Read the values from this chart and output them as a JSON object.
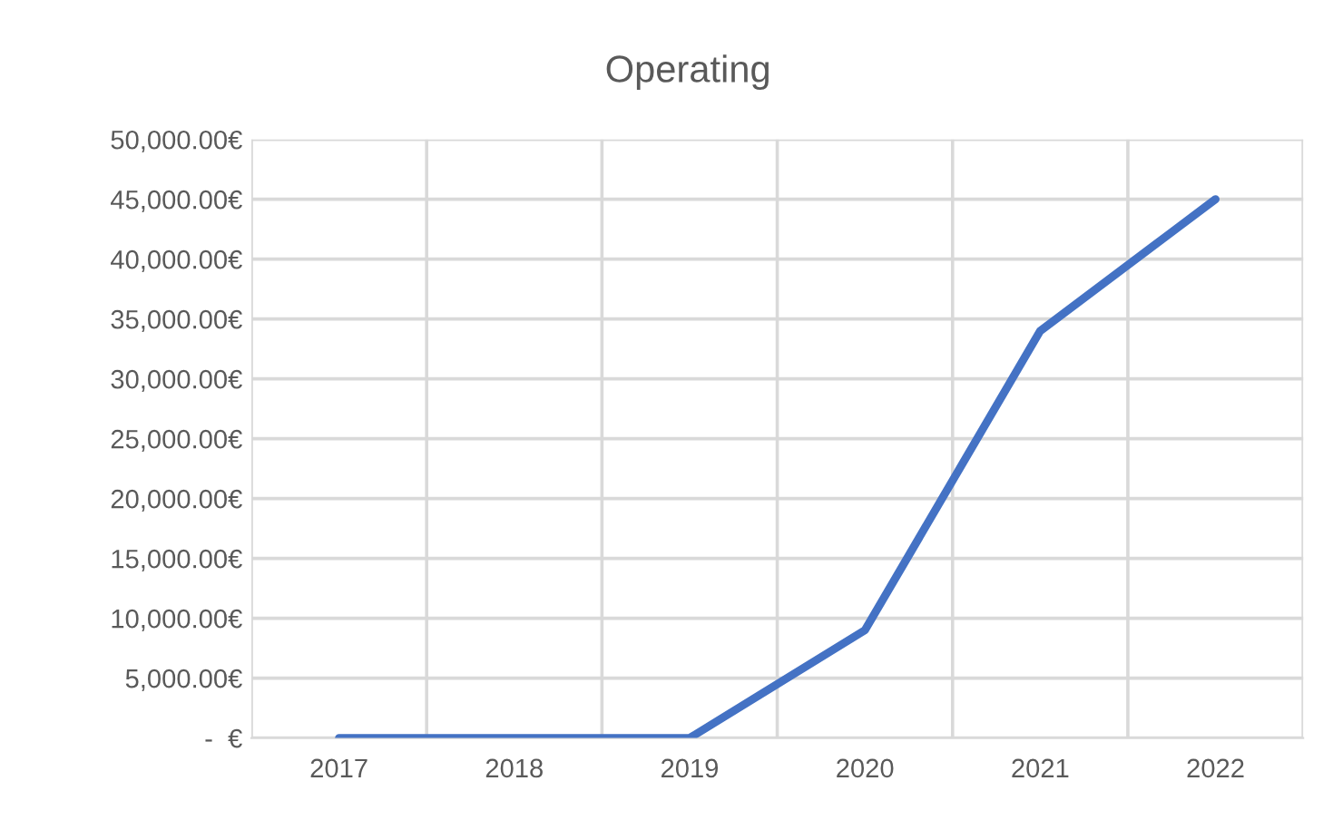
{
  "chart_data": {
    "type": "line",
    "title": "Operating",
    "categories": [
      "2017",
      "2018",
      "2019",
      "2020",
      "2021",
      "2022"
    ],
    "series": [
      {
        "color": "#4472c4",
        "values": [
          0,
          0,
          0,
          9000,
          34000,
          45000
        ]
      }
    ],
    "ylim": [
      0,
      50000
    ],
    "yticks": [
      {
        "value": 0,
        "label": " -  €"
      },
      {
        "value": 5000,
        "label": "5,000.00€"
      },
      {
        "value": 10000,
        "label": "10,000.00€"
      },
      {
        "value": 15000,
        "label": "15,000.00€"
      },
      {
        "value": 20000,
        "label": "20,000.00€"
      },
      {
        "value": 25000,
        "label": "25,000.00€"
      },
      {
        "value": 30000,
        "label": "30,000.00€"
      },
      {
        "value": 35000,
        "label": "35,000.00€"
      },
      {
        "value": 40000,
        "label": "40,000.00€"
      },
      {
        "value": 45000,
        "label": "45,000.00€"
      },
      {
        "value": 50000,
        "label": "50,000.00€"
      }
    ],
    "grid": true,
    "marker": "none",
    "line_style": "solid"
  }
}
